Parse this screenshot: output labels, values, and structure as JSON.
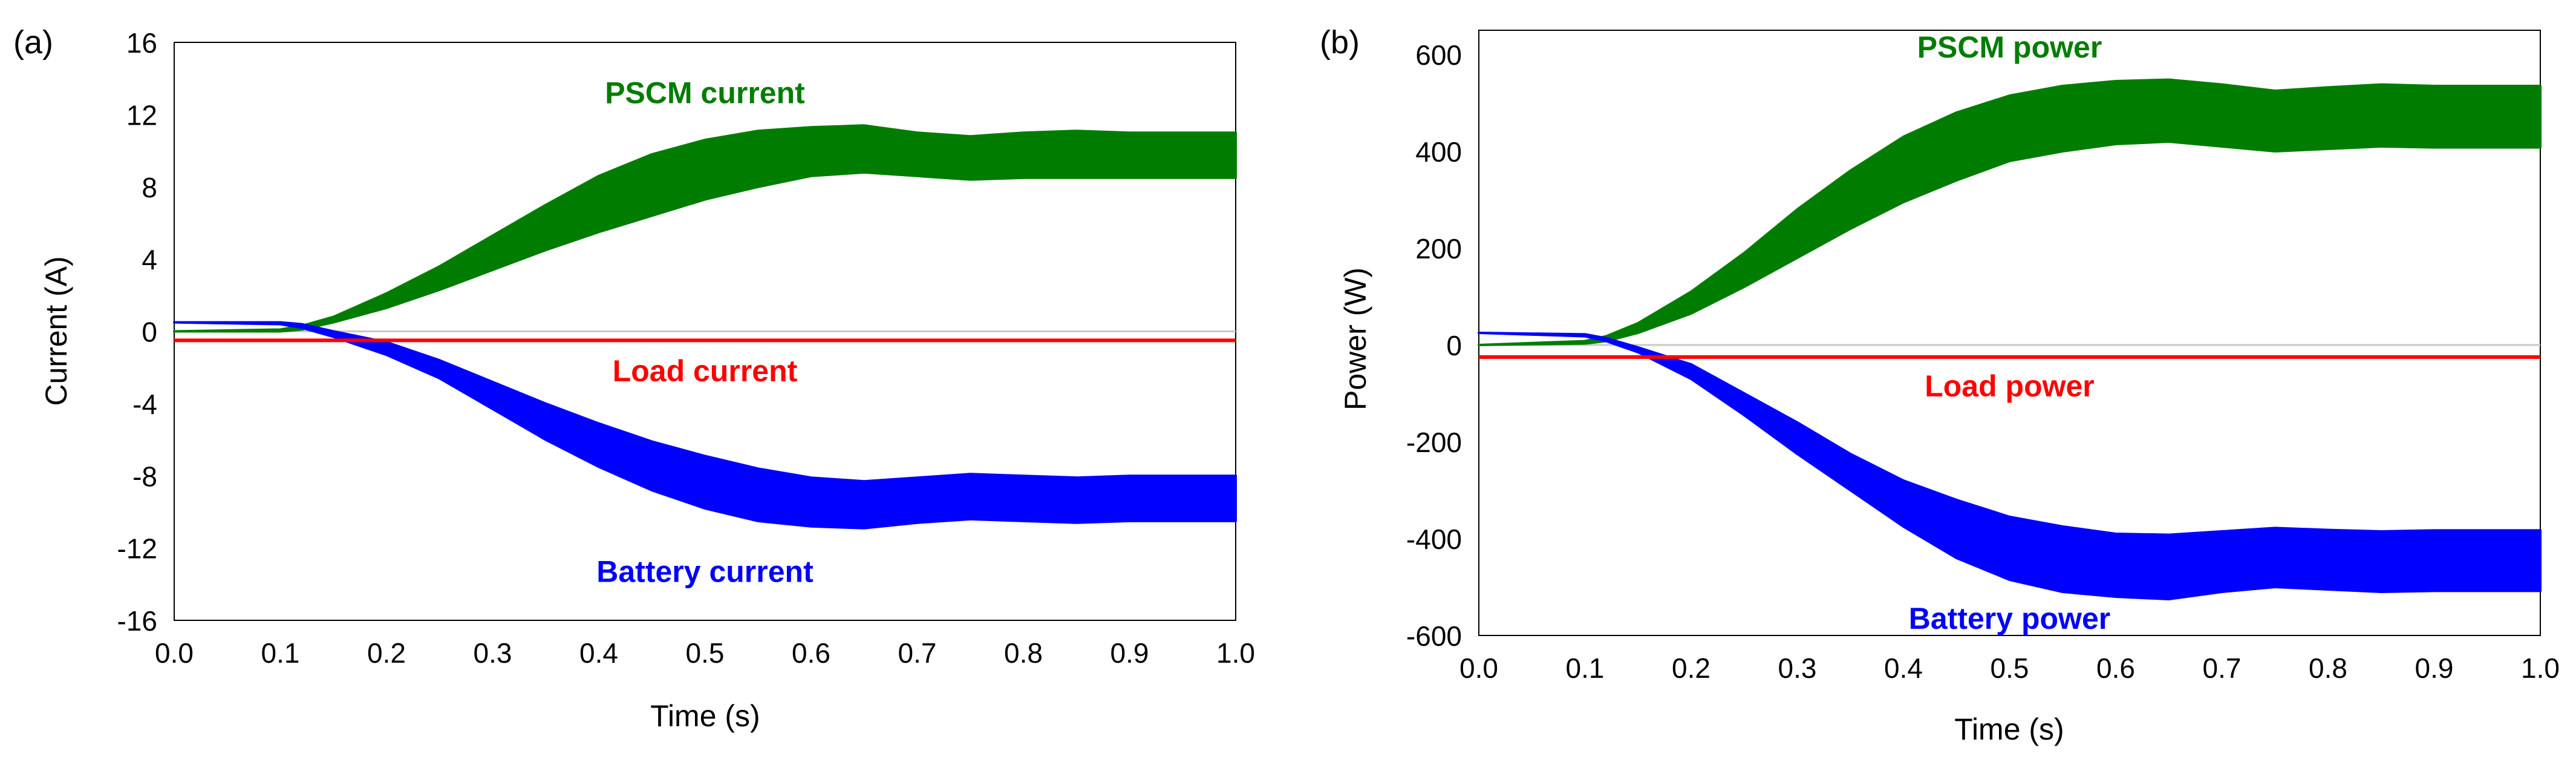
{
  "chart_data": [
    {
      "panel_label": "(a)",
      "type": "line",
      "title": "",
      "xlabel": "Time (s)",
      "ylabel": "Current (A)",
      "xlim": [
        0.0,
        1.0
      ],
      "ylim": [
        -16,
        16
      ],
      "xticks": [
        0.0,
        0.1,
        0.2,
        0.3,
        0.4,
        0.5,
        0.6,
        0.7,
        0.8,
        0.9,
        1.0
      ],
      "xtick_labels": [
        "0.0",
        "0.1",
        "0.2",
        "0.3",
        "0.4",
        "0.5",
        "0.6",
        "0.7",
        "0.8",
        "0.9",
        "1.0"
      ],
      "yticks": [
        16,
        12,
        8,
        4,
        0,
        -4,
        -8,
        -12,
        -16
      ],
      "ytick_labels": [
        "16",
        "12",
        "8",
        "4",
        "0",
        "-4",
        "-8",
        "-12",
        "-16"
      ],
      "series": [
        {
          "name": "PSCM current",
          "color": "#007d00",
          "x": [
            0.0,
            0.1,
            0.12,
            0.15,
            0.2,
            0.25,
            0.3,
            0.35,
            0.4,
            0.45,
            0.5,
            0.55,
            0.6,
            0.65,
            0.7,
            0.75,
            0.8,
            0.85,
            0.9,
            0.95,
            1.0
          ],
          "lower": [
            0.0,
            0.0,
            0.1,
            0.5,
            1.3,
            2.3,
            3.4,
            4.5,
            5.5,
            6.4,
            7.3,
            8.0,
            8.6,
            8.8,
            8.6,
            8.4,
            8.5,
            8.5,
            8.5,
            8.5,
            8.5
          ],
          "upper": [
            0.0,
            0.1,
            0.3,
            0.8,
            2.1,
            3.6,
            5.3,
            7.0,
            8.6,
            9.8,
            10.6,
            11.1,
            11.3,
            11.4,
            11.0,
            10.8,
            11.0,
            11.1,
            11.0,
            11.0,
            11.0
          ],
          "label_x": 0.5,
          "label_y": 13.2
        },
        {
          "name": "Load current",
          "color": "#ff0000",
          "x": [
            0.0,
            1.0
          ],
          "values": [
            -0.5,
            -0.5
          ],
          "label_x": 0.5,
          "label_y": -2.2
        },
        {
          "name": "Battery current",
          "color": "#0000ff",
          "x": [
            0.0,
            0.1,
            0.12,
            0.15,
            0.2,
            0.25,
            0.3,
            0.35,
            0.4,
            0.45,
            0.5,
            0.55,
            0.6,
            0.65,
            0.7,
            0.75,
            0.8,
            0.85,
            0.9,
            0.95,
            1.0
          ],
          "lower": [
            0.5,
            0.4,
            0.2,
            -0.3,
            -1.3,
            -2.6,
            -4.3,
            -6.0,
            -7.5,
            -8.8,
            -9.8,
            -10.5,
            -10.8,
            -10.9,
            -10.6,
            -10.4,
            -10.5,
            -10.6,
            -10.5,
            -10.5,
            -10.5
          ],
          "upper": [
            0.5,
            0.5,
            0.4,
            0.0,
            -0.6,
            -1.6,
            -2.8,
            -4.0,
            -5.1,
            -6.1,
            -6.9,
            -7.6,
            -8.1,
            -8.3,
            -8.1,
            -7.9,
            -8.0,
            -8.1,
            -8.0,
            -8.0,
            -8.0
          ],
          "label_x": 0.5,
          "label_y": -13.3
        }
      ]
    },
    {
      "panel_label": "(b)",
      "type": "line",
      "title": "",
      "xlabel": "Time (s)",
      "ylabel": "Power (W)",
      "xlim": [
        0.0,
        1.0
      ],
      "ylim": [
        -600,
        650
      ],
      "xticks": [
        0.0,
        0.1,
        0.2,
        0.3,
        0.4,
        0.5,
        0.6,
        0.7,
        0.8,
        0.9,
        1.0
      ],
      "xtick_labels": [
        "0.0",
        "0.1",
        "0.2",
        "0.3",
        "0.4",
        "0.5",
        "0.6",
        "0.7",
        "0.8",
        "0.9",
        "1.0"
      ],
      "yticks": [
        600,
        400,
        200,
        0,
        -200,
        -400,
        -600
      ],
      "ytick_labels": [
        "600",
        "400",
        "200",
        "0",
        "-200",
        "-400",
        "-600"
      ],
      "series": [
        {
          "name": "PSCM power",
          "color": "#007d00",
          "x": [
            0.0,
            0.1,
            0.12,
            0.15,
            0.2,
            0.25,
            0.3,
            0.35,
            0.4,
            0.45,
            0.5,
            0.55,
            0.6,
            0.65,
            0.7,
            0.75,
            0.8,
            0.85,
            0.9,
            0.95,
            1.0
          ],
          "lower": [
            0,
            3,
            8,
            25,
            65,
            120,
            180,
            240,
            295,
            340,
            380,
            400,
            415,
            420,
            410,
            400,
            405,
            410,
            408,
            408,
            408
          ],
          "upper": [
            0,
            8,
            18,
            45,
            110,
            190,
            280,
            360,
            430,
            480,
            515,
            535,
            545,
            548,
            538,
            525,
            532,
            538,
            535,
            535,
            535
          ],
          "label_x": 0.5,
          "label_y": 615
        },
        {
          "name": "Load power",
          "color": "#ff0000",
          "x": [
            0.0,
            1.0
          ],
          "values": [
            -25,
            -25
          ],
          "label_x": 0.5,
          "label_y": -85
        },
        {
          "name": "Battery power",
          "color": "#0000ff",
          "x": [
            0.0,
            0.1,
            0.12,
            0.15,
            0.2,
            0.25,
            0.3,
            0.35,
            0.4,
            0.45,
            0.5,
            0.55,
            0.6,
            0.65,
            0.7,
            0.75,
            0.8,
            0.85,
            0.9,
            0.95,
            1.0
          ],
          "lower": [
            25,
            18,
            8,
            -15,
            -70,
            -145,
            -225,
            -300,
            -375,
            -440,
            -485,
            -510,
            -520,
            -525,
            -510,
            -500,
            -505,
            -510,
            -508,
            -508,
            -508
          ],
          "upper": [
            25,
            22,
            14,
            -5,
            -40,
            -100,
            -160,
            -225,
            -280,
            -320,
            -355,
            -375,
            -390,
            -392,
            -385,
            -378,
            -382,
            -385,
            -383,
            -383,
            -383
          ],
          "label_x": 0.5,
          "label_y": -565
        }
      ]
    }
  ]
}
